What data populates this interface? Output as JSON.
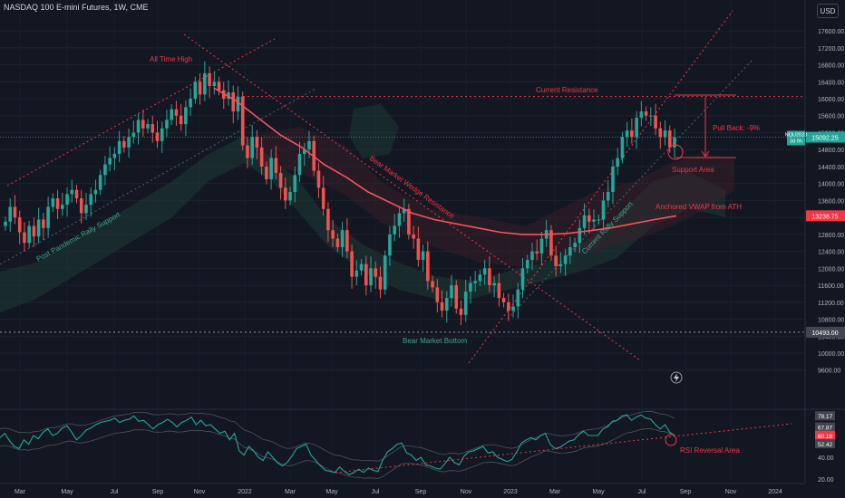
{
  "header": {
    "title": "NASDAQ 100 E-mini Futures, 1W, CME",
    "currency": "USD"
  },
  "colors": {
    "background": "#131722",
    "up": "#26a69a",
    "down": "#ef5350",
    "annotation_red": "#f23645",
    "annotation_green": "#3fa88f",
    "vwap": "#f7525f",
    "rsi": "#26a69a"
  },
  "chart_data": [
    {
      "type": "candlestick",
      "title": "NASDAQ 100 E-mini Futures, 1W, CME",
      "ylim": [
        9000,
        18200
      ],
      "x_labels": [
        "Mar",
        "May",
        "Jul",
        "Sep",
        "Nov",
        "2022",
        "Mar",
        "May",
        "Jul",
        "Sep",
        "Nov",
        "2023",
        "Mar",
        "May",
        "Jul",
        "Sep",
        "Nov",
        "2024"
      ],
      "y_ticks": [
        9600,
        10000,
        10400,
        10800,
        11200,
        11600,
        12000,
        12400,
        12800,
        13200,
        13600,
        14000,
        14400,
        14800,
        15200,
        15600,
        16000,
        16400,
        16800,
        17200,
        17600
      ],
      "y_tick_labels": [
        "9600.00",
        "10000.00",
        "10400.00",
        "10800.00",
        "11200.00",
        "11600.00",
        "12000.00",
        "12400.00",
        "12800.00",
        "13200.00",
        "13600.00",
        "14000.00",
        "14400.00",
        "14800.00",
        "15200.00",
        "15600.00",
        "16000.00",
        "16400.00",
        "16800.00",
        "17200.00",
        "17600.00"
      ],
      "price_tags": [
        {
          "label": "15092.25",
          "symbol": "NQU2023",
          "countdown": "3d 9h",
          "value": 15092.25
        },
        {
          "label": "13238.75",
          "value": 13238.75
        },
        {
          "label": "10493.00",
          "value": 10493
        }
      ],
      "closes": [
        13100,
        13450,
        13200,
        12850,
        12600,
        13000,
        12750,
        13150,
        12950,
        13450,
        13650,
        13400,
        13500,
        13750,
        13850,
        13650,
        13300,
        13500,
        13750,
        13850,
        14200,
        14450,
        14600,
        14700,
        15000,
        14850,
        15100,
        15200,
        15500,
        15300,
        15400,
        15200,
        15000,
        15300,
        15500,
        15750,
        15600,
        15400,
        15800,
        16000,
        16400,
        16100,
        16600,
        16300,
        16400,
        16200,
        16000,
        16150,
        15700,
        16050,
        14900,
        14600,
        15100,
        14850,
        14400,
        14100,
        14600,
        14250,
        13900,
        13600,
        13800,
        14200,
        14700,
        14800,
        15000,
        14300,
        13900,
        13400,
        12900,
        12700,
        12500,
        12900,
        12400,
        11800,
        11950,
        12100,
        11600,
        12000,
        11800,
        11500,
        12300,
        12800,
        13000,
        13300,
        13400,
        12800,
        12700,
        12200,
        12400,
        11700,
        11550,
        11200,
        11000,
        11300,
        11600,
        11050,
        10900,
        11450,
        11650,
        11700,
        11850,
        12000,
        11600,
        11650,
        11300,
        11200,
        11000,
        11100,
        11500,
        12000,
        12200,
        12400,
        12350,
        12700,
        12900,
        12300,
        12050,
        12100,
        12300,
        12500,
        12600,
        12950,
        13250,
        13100,
        13150,
        13150,
        13600,
        13800,
        14400,
        14600,
        15100,
        15250,
        15100,
        15550,
        15700,
        15600,
        15600,
        15300,
        15100,
        15250,
        14850,
        15092
      ],
      "annotations": [
        {
          "id": "ath",
          "text": "All Time High"
        },
        {
          "id": "current-resistance",
          "text": "Current Resistance"
        },
        {
          "id": "pull-back",
          "text": "Pull Back: -9%"
        },
        {
          "id": "support-area",
          "text": "Support Area"
        },
        {
          "id": "bear-wedge",
          "text": "Bear Market Wedge Resistance"
        },
        {
          "id": "vwap",
          "text": "Anchored VWAP from ATH"
        },
        {
          "id": "post-pandemic",
          "text": "Post Pandemic Rally Support"
        },
        {
          "id": "current-rally",
          "text": "Current Rally Support"
        },
        {
          "id": "bear-bottom",
          "text": "Bear Market Bottom"
        }
      ],
      "levels": {
        "current_resistance": 16050,
        "bear_market_bottom": 10493
      },
      "series": [
        {
          "name": "Anchored VWAP from ATH",
          "values": [
            16250,
            15950,
            15550,
            15150,
            14850,
            14450,
            14150,
            13800,
            13550,
            13300,
            13150,
            13050,
            12950,
            12850,
            12800,
            12800,
            12820,
            12880,
            12950,
            13050,
            13150,
            13238
          ]
        }
      ]
    },
    {
      "type": "line",
      "ylim": [
        10,
        90
      ],
      "y_ticks": [
        20,
        40
      ],
      "y_tick_labels": [
        "20.00",
        "40.00"
      ],
      "price_tags": [
        {
          "label": "78.17",
          "value": 78.17
        },
        {
          "label": "67.87",
          "value": 67.87
        },
        {
          "label": "60.18",
          "value": 60.18
        },
        {
          "label": "52.42",
          "value": 52.42
        }
      ],
      "annotations": [
        {
          "id": "rsi-reversal",
          "text": "RSI Reversal Area"
        }
      ],
      "series": [
        {
          "name": "RSI",
          "values": [
            58,
            62,
            55,
            50,
            48,
            56,
            52,
            60,
            57,
            63,
            66,
            60,
            62,
            67,
            69,
            63,
            56,
            60,
            65,
            67,
            70,
            72,
            73,
            74,
            76,
            72,
            74,
            75,
            78,
            73,
            74,
            70,
            66,
            70,
            72,
            75,
            72,
            68,
            72,
            74,
            77,
            70,
            74,
            69,
            70,
            66,
            62,
            64,
            56,
            62,
            46,
            42,
            50,
            46,
            40,
            37,
            45,
            40,
            35,
            32,
            35,
            41,
            48,
            50,
            52,
            42,
            37,
            32,
            28,
            27,
            26,
            31,
            27,
            24,
            26,
            29,
            26,
            30,
            28,
            27,
            37,
            45,
            48,
            52,
            53,
            44,
            42,
            37,
            40,
            33,
            32,
            30,
            29,
            34,
            40,
            35,
            33,
            41,
            45,
            46,
            48,
            50,
            44,
            45,
            40,
            38,
            36,
            38,
            45,
            53,
            56,
            58,
            56,
            60,
            62,
            52,
            48,
            49,
            52,
            55,
            56,
            61,
            64,
            60,
            60,
            60,
            66,
            68,
            73,
            74,
            78,
            79,
            74,
            77,
            79,
            76,
            75,
            70,
            66,
            70,
            63,
            60.18
          ]
        }
      ]
    }
  ]
}
